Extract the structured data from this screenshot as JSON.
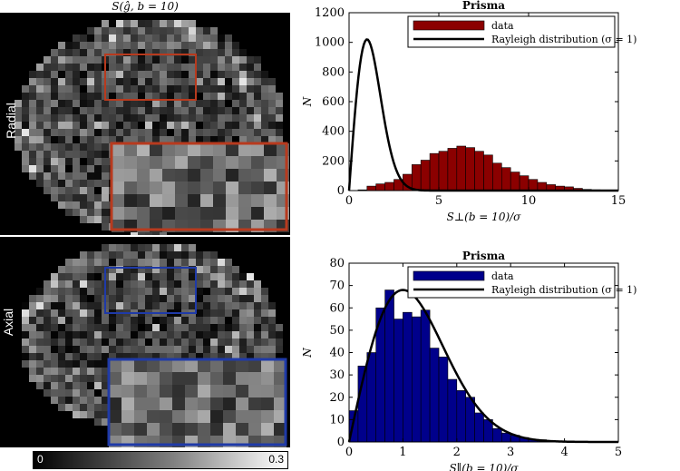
{
  "left_panel": {
    "title": "S(ĝ, b = 10)",
    "top_label": "Radial",
    "bottom_label": "Axial",
    "colorbar": {
      "min_label": "0",
      "max_label": "0.3"
    },
    "inset_colors": {
      "radial": "#b83a1e",
      "axial": "#1f3aa8"
    }
  },
  "chart_data": [
    {
      "type": "bar",
      "title": "Prisma",
      "xlabel": "S⊥(b = 10)/σ",
      "ylabel": "N",
      "xlim": [
        0,
        15
      ],
      "ylim": [
        0,
        1200
      ],
      "xticks": [
        0,
        5,
        10,
        15
      ],
      "yticks": [
        0,
        200,
        400,
        600,
        800,
        1000,
        1200
      ],
      "bar_color": "#8b0000",
      "bin_width": 0.5,
      "bin_starts": [
        0.5,
        1.0,
        1.5,
        2.0,
        2.5,
        3.0,
        3.5,
        4.0,
        4.5,
        5.0,
        5.5,
        6.0,
        6.5,
        7.0,
        7.5,
        8.0,
        8.5,
        9.0,
        9.5,
        10.0,
        10.5,
        11.0,
        11.5,
        12.0,
        12.5,
        13.0,
        13.5,
        14.0,
        14.5
      ],
      "values": [
        5,
        30,
        45,
        55,
        75,
        110,
        175,
        205,
        250,
        265,
        285,
        300,
        290,
        265,
        240,
        185,
        155,
        125,
        100,
        75,
        55,
        40,
        30,
        25,
        15,
        8,
        5,
        3,
        2
      ],
      "legend": {
        "placement": "top-right",
        "entries": [
          "data",
          "Rayleigh distribution (σ = 1)"
        ]
      },
      "curve": {
        "type": "rayleigh",
        "sigma": 1,
        "peak": 1020
      },
      "grid": false
    },
    {
      "type": "bar",
      "title": "Prisma",
      "xlabel": "S∥(b = 10)/σ",
      "ylabel": "N",
      "xlim": [
        0,
        5
      ],
      "ylim": [
        0,
        80
      ],
      "xticks": [
        0,
        1,
        2,
        3,
        4,
        5
      ],
      "yticks": [
        0,
        10,
        20,
        30,
        40,
        50,
        60,
        70,
        80
      ],
      "bar_color": "#00008b",
      "bin_width": 0.167,
      "bin_starts": [
        0.0,
        0.167,
        0.333,
        0.5,
        0.667,
        0.833,
        1.0,
        1.167,
        1.333,
        1.5,
        1.667,
        1.833,
        2.0,
        2.167,
        2.333,
        2.5,
        2.667,
        2.833,
        3.0,
        3.167,
        3.333,
        3.5,
        3.667,
        3.833,
        4.0,
        4.167,
        4.333,
        4.5
      ],
      "values": [
        14,
        34,
        40,
        60,
        68,
        55,
        58,
        56,
        59,
        42,
        38,
        28,
        23,
        20,
        13,
        10,
        6,
        4,
        3,
        2,
        1,
        1,
        0.5,
        0.3,
        0.2,
        0.2,
        0.1,
        0.1
      ],
      "legend": {
        "placement": "top-right",
        "entries": [
          "data",
          "Rayleigh distribution (σ = 1)"
        ]
      },
      "curve": {
        "type": "rayleigh",
        "sigma": 1,
        "peak": 68
      },
      "grid": false
    }
  ]
}
